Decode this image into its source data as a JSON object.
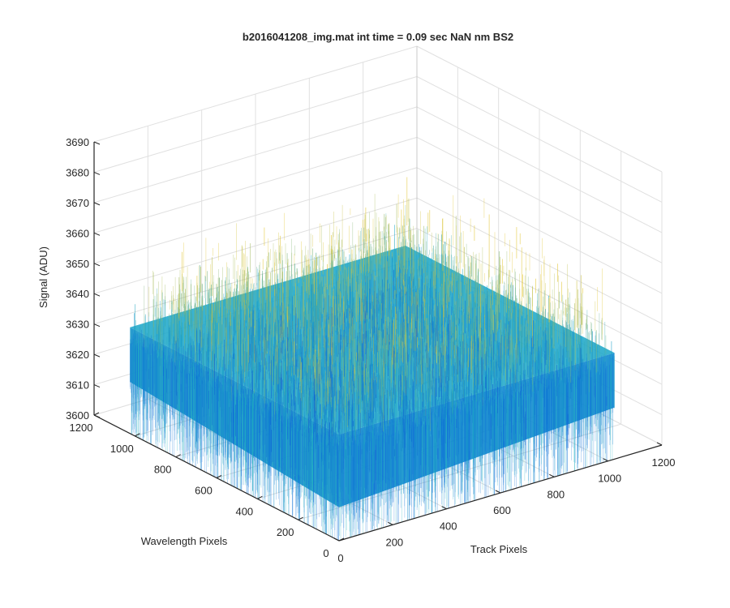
{
  "chart_data": {
    "type": "surface",
    "title": "b2016041208_img.mat int time = 0.09 sec  NaN nm BS2",
    "xlabel": "Track Pixels",
    "ylabel": "Wavelength Pixels",
    "zlabel": "Signal (ADU)",
    "xlim": [
      0,
      1200
    ],
    "ylim": [
      0,
      1200
    ],
    "zlim": [
      3600,
      3690
    ],
    "x_ticks": [
      "0",
      "200",
      "400",
      "600",
      "800",
      "1000",
      "1200"
    ],
    "y_ticks": [
      "0",
      "200",
      "400",
      "600",
      "800",
      "1000",
      "1200"
    ],
    "z_ticks": [
      "3600",
      "3610",
      "3620",
      "3630",
      "3640",
      "3650",
      "3660",
      "3670",
      "3680",
      "3690"
    ],
    "x_range_data": [
      0,
      1024
    ],
    "y_range_data": [
      0,
      1024
    ],
    "signal_mean": 3635,
    "signal_spread": 15,
    "grid": true,
    "colormap": "parula"
  },
  "colors": {
    "surface_low": "#0f5ad4",
    "surface_mid": "#19a6c8",
    "surface_high": "#e2c531",
    "axis": "#262626",
    "grid": "#e0e0e0"
  }
}
